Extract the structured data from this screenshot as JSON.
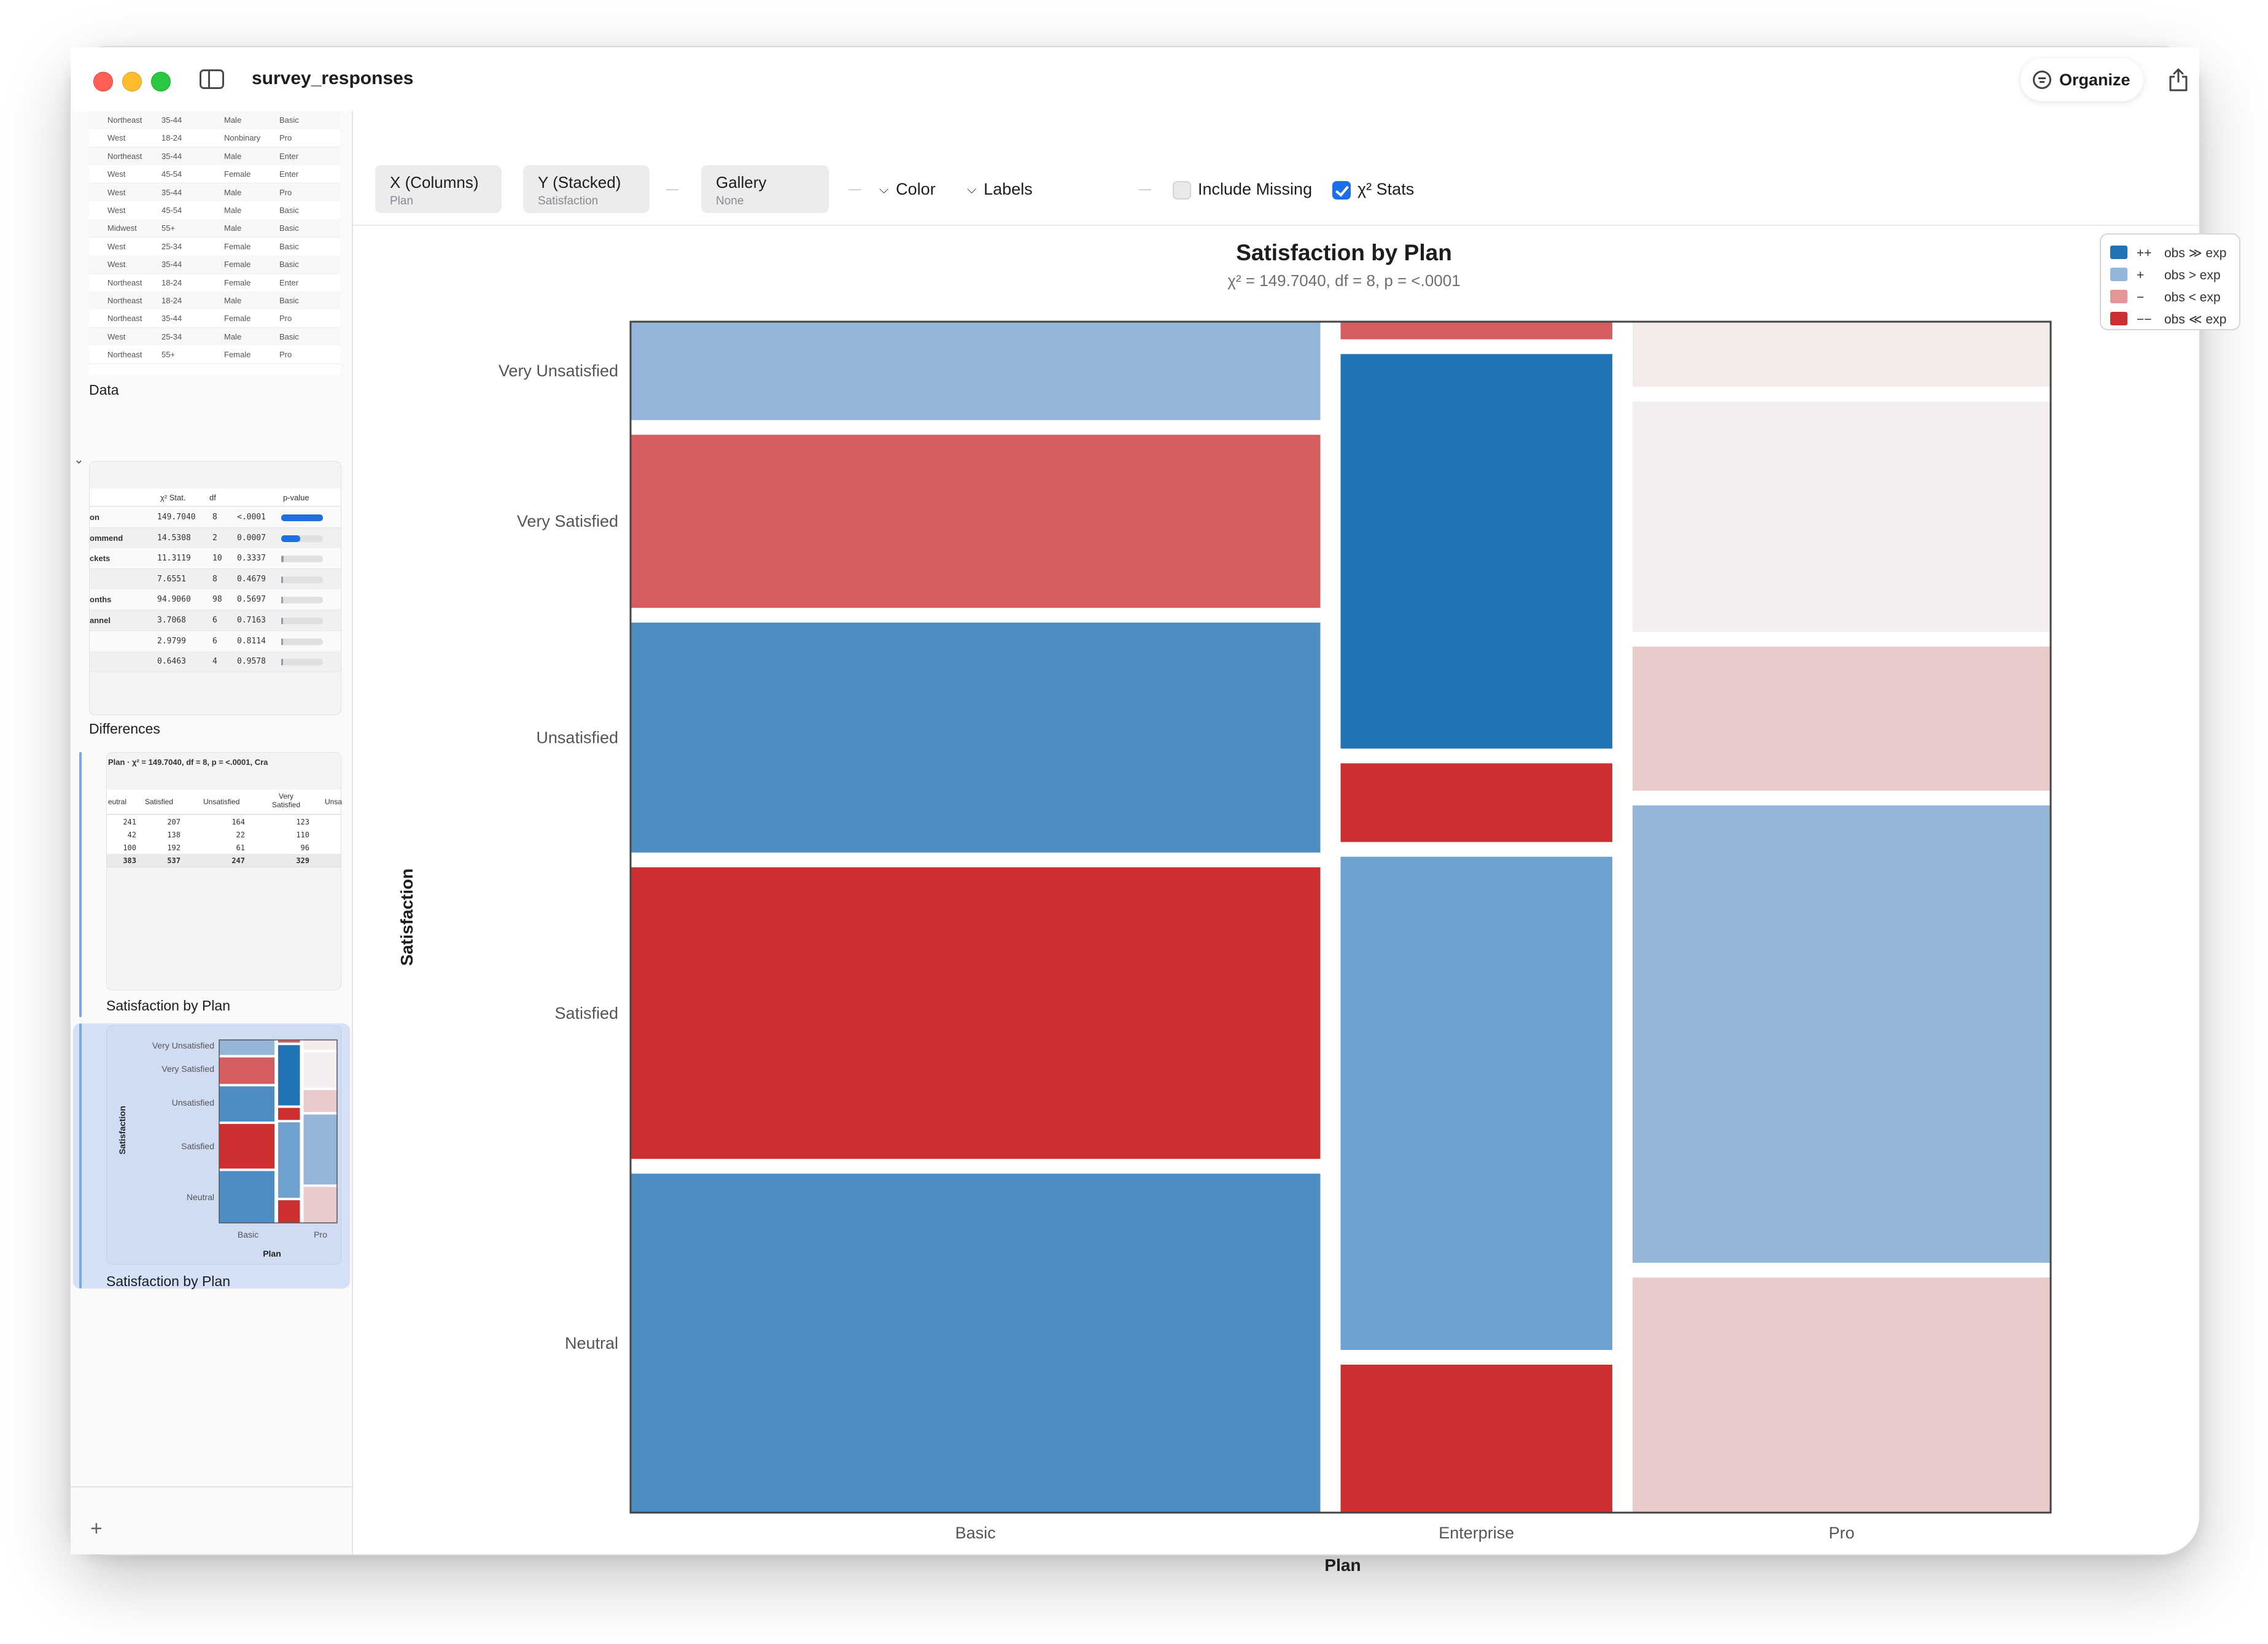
{
  "window": {
    "title": "survey_responses",
    "organize_label": "Organize"
  },
  "sidebar": {
    "data_label": "Data",
    "data_rows": [
      [
        "Northeast",
        "35-44",
        "Male",
        "Basic"
      ],
      [
        "West",
        "18-24",
        "Nonbinary",
        "Pro"
      ],
      [
        "Northeast",
        "35-44",
        "Male",
        "Enter"
      ],
      [
        "West",
        "45-54",
        "Female",
        "Enter"
      ],
      [
        "West",
        "35-44",
        "Male",
        "Pro"
      ],
      [
        "West",
        "45-54",
        "Male",
        "Basic"
      ],
      [
        "Midwest",
        "55+",
        "Male",
        "Basic"
      ],
      [
        "West",
        "25-34",
        "Female",
        "Basic"
      ],
      [
        "West",
        "35-44",
        "Female",
        "Basic"
      ],
      [
        "Northeast",
        "18-24",
        "Female",
        "Enter"
      ],
      [
        "Northeast",
        "18-24",
        "Male",
        "Basic"
      ],
      [
        "Northeast",
        "35-44",
        "Female",
        "Pro"
      ],
      [
        "West",
        "25-34",
        "Male",
        "Basic"
      ],
      [
        "Northeast",
        "55+",
        "Female",
        "Pro"
      ]
    ],
    "differences_label": "Differences",
    "differences_headers": [
      "χ² Stat.",
      "df",
      "p-value"
    ],
    "differences_rows": [
      {
        "name": "on",
        "stat": "149.7040",
        "df": "8",
        "p": "<.0001",
        "bar": 1.0
      },
      {
        "name": "ommend",
        "stat": "14.5308",
        "df": "2",
        "p": "0.0007",
        "bar": 0.45
      },
      {
        "name": "ckets",
        "stat": "11.3119",
        "df": "10",
        "p": "0.3337",
        "bar": 0.06
      },
      {
        "name": "",
        "stat": "7.6551",
        "df": "8",
        "p": "0.4679",
        "bar": 0.03
      },
      {
        "name": "onths",
        "stat": "94.9060",
        "df": "98",
        "p": "0.5697",
        "bar": 0.02
      },
      {
        "name": "annel",
        "stat": "3.7068",
        "df": "6",
        "p": "0.7163",
        "bar": 0.02
      },
      {
        "name": "",
        "stat": "2.9799",
        "df": "6",
        "p": "0.8114",
        "bar": 0.02
      },
      {
        "name": "",
        "stat": "0.6463",
        "df": "4",
        "p": "0.9578",
        "bar": 0.02
      }
    ],
    "table_label": "Satisfaction by Plan",
    "table_caption": "Plan  ·  χ² = 149.7040,  df = 8,  p = <.0001,  Cra",
    "table_headers": [
      "eutral",
      "Satisfied",
      "Unsatisfied",
      "Very Satisfied",
      "Unsa"
    ],
    "table_rows": [
      [
        "241",
        "207",
        "164",
        "123"
      ],
      [
        "42",
        "138",
        "22",
        "110"
      ],
      [
        "100",
        "192",
        "61",
        "96"
      ],
      [
        "383",
        "537",
        "247",
        "329"
      ]
    ],
    "mosaic_label": "Satisfaction by Plan",
    "mosaic_thumb": {
      "y_labels": [
        "Very Unsatisfied",
        "Very Satisfied",
        "Unsatisfied",
        "Satisfied",
        "Neutral"
      ],
      "x_labels": [
        "Basic",
        "Pro"
      ],
      "y_title": "Satisfaction",
      "x_title": "Plan"
    }
  },
  "toolbar": {
    "x_title": "X (Columns)",
    "x_sub": "Plan",
    "y_title": "Y (Stacked)",
    "y_sub": "Satisfaction",
    "gallery_title": "Gallery",
    "gallery_sub": "None",
    "color_label": "Color",
    "labels_label": "Labels",
    "include_missing_label": "Include Missing",
    "include_missing_checked": false,
    "chi_label": "χ² Stats",
    "chi_checked": true
  },
  "colors": {
    "strong_pos": "#2273b5",
    "mid_pos": "#4e8cc4",
    "mid2_pos": "#6ea1cf",
    "weak_pos": "#93b6d9",
    "weak_neg": "#eacbcb",
    "faint_neg": "#f3eaea",
    "faint_neg2": "#f4efee",
    "mid_neg": "#d55d5f",
    "strong_neg": "#cc2f30"
  },
  "chart_data": {
    "type": "mosaic",
    "title": "Satisfaction by Plan",
    "subtitle": "χ² = 149.7040,  df = 8,  p = <.0001",
    "xlabel": "Plan",
    "ylabel": "Satisfaction",
    "categories": [
      "Basic",
      "Enterprise",
      "Pro"
    ],
    "column_shares": [
      0.495,
      0.195,
      0.3
    ],
    "stack_order": [
      "Very Unsatisfied",
      "Very Satisfied",
      "Unsatisfied",
      "Satisfied",
      "Neutral"
    ],
    "y_axis_labels": [
      "Very Unsatisfied",
      "Very Satisfied",
      "Unsatisfied",
      "Satisfied",
      "Neutral"
    ],
    "columns": [
      {
        "name": "Basic",
        "shares": [
          0.083,
          0.146,
          0.194,
          0.246,
          0.286
        ],
        "colors": [
          "weak_pos",
          "mid_neg",
          "mid_pos",
          "strong_neg",
          "mid_pos"
        ]
      },
      {
        "name": "Enterprise",
        "shares": [
          0.015,
          0.336,
          0.067,
          0.42,
          0.126
        ],
        "colors": [
          "mid_neg",
          "strong_pos",
          "strong_neg",
          "mid2_pos",
          "strong_neg"
        ]
      },
      {
        "name": "Pro",
        "shares": [
          0.055,
          0.195,
          0.122,
          0.387,
          0.199
        ],
        "colors": [
          "faint_neg",
          "faint_neg2",
          "weak_neg",
          "weak_pos",
          "weak_neg"
        ]
      }
    ],
    "legend": [
      {
        "sym": "++",
        "text": "obs ≫ exp",
        "color": "#2273b5"
      },
      {
        "sym": "+",
        "text": "obs > exp",
        "color": "#93b6d9"
      },
      {
        "sym": "−",
        "text": "obs < exp",
        "color": "#e49597"
      },
      {
        "sym": "−−",
        "text": "obs ≪ exp",
        "color": "#cc2f30"
      }
    ],
    "legend_position": "top-right"
  }
}
